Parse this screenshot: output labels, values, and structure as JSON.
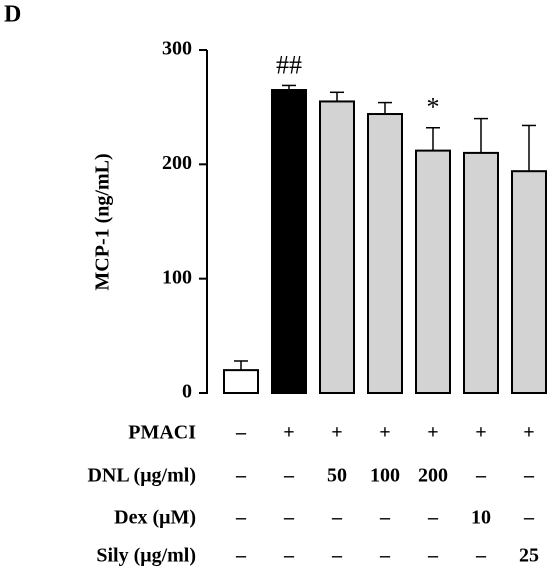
{
  "chart_data": {
    "type": "bar",
    "panel": "D",
    "y_label": "MCP-1 (ng/mL)",
    "categories": [
      null,
      null,
      null,
      null,
      null,
      null,
      null
    ],
    "values": [
      20,
      265,
      255,
      244,
      212,
      210,
      194
    ],
    "errors": [
      8,
      4,
      8,
      10,
      20,
      30,
      40
    ],
    "colors": [
      "#ffffff",
      "#000000",
      "#d3d3d3",
      "#d3d3d3",
      "#d3d3d3",
      "#d3d3d3",
      "#d3d3d3"
    ],
    "annotations": [
      null,
      "##",
      null,
      null,
      "*",
      null,
      null
    ],
    "ylim": [
      0,
      300
    ],
    "yticks": [
      0,
      100,
      200,
      300
    ],
    "conditions": [
      {
        "name": "PMACI",
        "values": [
          "–",
          "+",
          "+",
          "+",
          "+",
          "+",
          "+"
        ]
      },
      {
        "name": "DNL (μg/ml)",
        "values": [
          "–",
          "–",
          "50",
          "100",
          "200",
          "–",
          "–"
        ]
      },
      {
        "name": "Dex (μM)",
        "values": [
          "–",
          "–",
          "–",
          "–",
          "–",
          "10",
          "–"
        ]
      },
      {
        "name": "Sily (μg/ml)",
        "values": [
          "–",
          "–",
          "–",
          "–",
          "–",
          "–",
          "25"
        ]
      }
    ]
  }
}
